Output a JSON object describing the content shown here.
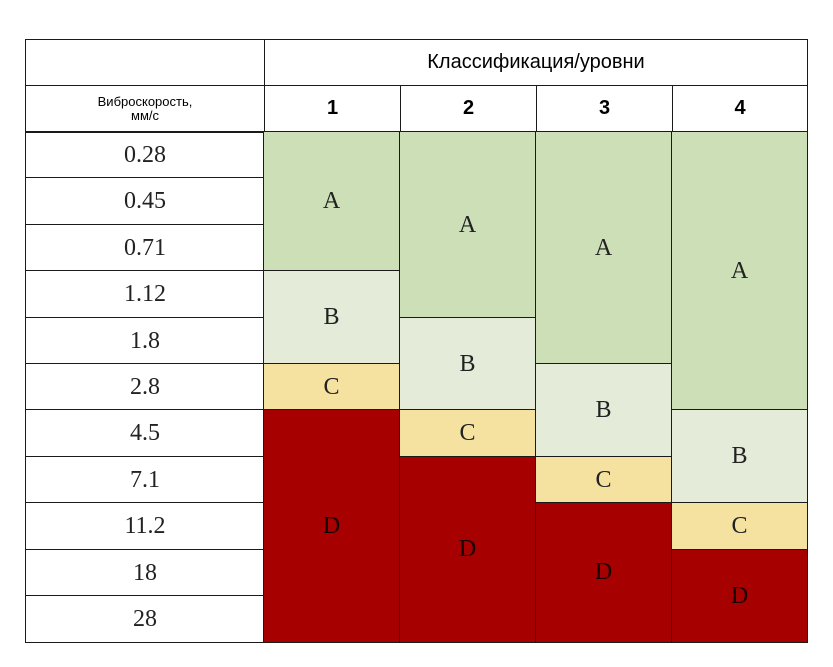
{
  "header": {
    "title": "Классификация/уровни",
    "row_label_line1": "Виброскорость,",
    "row_label_line2": "мм/с",
    "columns": [
      "1",
      "2",
      "3",
      "4"
    ]
  },
  "velocities": [
    "0.28",
    "0.45",
    "0.71",
    "1.12",
    "1.8",
    "2.8",
    "4.5",
    "7.1",
    "11.2",
    "18",
    "28"
  ],
  "zone_colors": {
    "A": "#cddfb7",
    "B": "#e4ecd9",
    "C": "#f5e2a1",
    "D": "#a60000"
  },
  "columns_zones": [
    [
      {
        "zone": "A",
        "rows": 3
      },
      {
        "zone": "B",
        "rows": 2
      },
      {
        "zone": "C",
        "rows": 1
      },
      {
        "zone": "D",
        "rows": 5
      }
    ],
    [
      {
        "zone": "A",
        "rows": 4
      },
      {
        "zone": "B",
        "rows": 2
      },
      {
        "zone": "C",
        "rows": 1
      },
      {
        "zone": "D",
        "rows": 4
      }
    ],
    [
      {
        "zone": "A",
        "rows": 5
      },
      {
        "zone": "B",
        "rows": 2
      },
      {
        "zone": "C",
        "rows": 1
      },
      {
        "zone": "D",
        "rows": 3
      }
    ],
    [
      {
        "zone": "A",
        "rows": 6
      },
      {
        "zone": "B",
        "rows": 2
      },
      {
        "zone": "C",
        "rows": 1
      },
      {
        "zone": "D",
        "rows": 2
      }
    ]
  ]
}
